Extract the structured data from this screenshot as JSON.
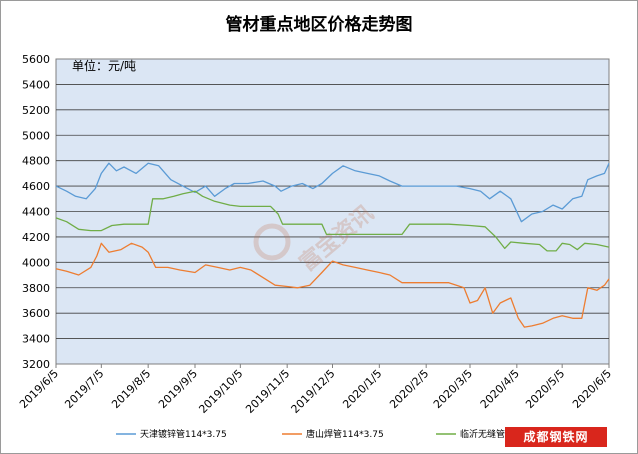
{
  "chart_data": {
    "type": "line",
    "title": "管材重点地区价格走势图",
    "unit_label": "单位：元/吨",
    "ylim": [
      3200,
      5600
    ],
    "yticks": [
      3200,
      3400,
      3600,
      3800,
      4000,
      4200,
      4400,
      4600,
      4800,
      5000,
      5200,
      5400,
      5600
    ],
    "xlim": [
      "2019-06-05",
      "2020-06-05"
    ],
    "xticks": [
      "2019/6/5",
      "2019/7/5",
      "2019/8/5",
      "2019/9/5",
      "2019/10/5",
      "2019/11/5",
      "2019/12/5",
      "2020/1/5",
      "2020/2/5",
      "2020/3/5",
      "2020/4/5",
      "2020/5/5",
      "2020/6/5"
    ],
    "grid": true,
    "legend_position": "bottom",
    "series": [
      {
        "name": "天津镀锌管114*3.75",
        "color": "#5b9bd5",
        "points": [
          [
            "2019-06-05",
            4600
          ],
          [
            "2019-06-12",
            4560
          ],
          [
            "2019-06-18",
            4520
          ],
          [
            "2019-06-25",
            4500
          ],
          [
            "2019-07-01",
            4580
          ],
          [
            "2019-07-05",
            4700
          ],
          [
            "2019-07-10",
            4780
          ],
          [
            "2019-07-15",
            4720
          ],
          [
            "2019-07-20",
            4750
          ],
          [
            "2019-07-28",
            4700
          ],
          [
            "2019-08-05",
            4780
          ],
          [
            "2019-08-12",
            4760
          ],
          [
            "2019-08-20",
            4650
          ],
          [
            "2019-08-28",
            4600
          ],
          [
            "2019-09-05",
            4550
          ],
          [
            "2019-09-12",
            4600
          ],
          [
            "2019-09-18",
            4520
          ],
          [
            "2019-09-25",
            4580
          ],
          [
            "2019-10-01",
            4620
          ],
          [
            "2019-10-10",
            4620
          ],
          [
            "2019-10-20",
            4640
          ],
          [
            "2019-10-28",
            4600
          ],
          [
            "2019-11-01",
            4560
          ],
          [
            "2019-11-08",
            4600
          ],
          [
            "2019-11-15",
            4620
          ],
          [
            "2019-11-22",
            4580
          ],
          [
            "2019-11-28",
            4620
          ],
          [
            "2019-12-05",
            4700
          ],
          [
            "2019-12-12",
            4760
          ],
          [
            "2019-12-20",
            4720
          ],
          [
            "2019-12-28",
            4700
          ],
          [
            "2020-01-05",
            4680
          ],
          [
            "2020-01-12",
            4640
          ],
          [
            "2020-01-20",
            4600
          ],
          [
            "2020-01-28",
            4600
          ],
          [
            "2020-02-05",
            4600
          ],
          [
            "2020-02-15",
            4600
          ],
          [
            "2020-02-25",
            4600
          ],
          [
            "2020-03-05",
            4580
          ],
          [
            "2020-03-12",
            4560
          ],
          [
            "2020-03-18",
            4500
          ],
          [
            "2020-03-25",
            4560
          ],
          [
            "2020-04-01",
            4500
          ],
          [
            "2020-04-08",
            4320
          ],
          [
            "2020-04-15",
            4380
          ],
          [
            "2020-04-22",
            4400
          ],
          [
            "2020-04-29",
            4450
          ],
          [
            "2020-05-05",
            4420
          ],
          [
            "2020-05-12",
            4500
          ],
          [
            "2020-05-18",
            4520
          ],
          [
            "2020-05-22",
            4650
          ],
          [
            "2020-05-28",
            4680
          ],
          [
            "2020-06-02",
            4700
          ],
          [
            "2020-06-05",
            4780
          ]
        ]
      },
      {
        "name": "唐山焊管114*3.75",
        "color": "#ed7d31",
        "points": [
          [
            "2019-06-05",
            3950
          ],
          [
            "2019-06-12",
            3930
          ],
          [
            "2019-06-20",
            3900
          ],
          [
            "2019-06-28",
            3960
          ],
          [
            "2019-07-02",
            4050
          ],
          [
            "2019-07-05",
            4150
          ],
          [
            "2019-07-10",
            4080
          ],
          [
            "2019-07-18",
            4100
          ],
          [
            "2019-07-25",
            4150
          ],
          [
            "2019-08-01",
            4120
          ],
          [
            "2019-08-05",
            4080
          ],
          [
            "2019-08-10",
            3960
          ],
          [
            "2019-08-18",
            3960
          ],
          [
            "2019-08-26",
            3940
          ],
          [
            "2019-09-05",
            3920
          ],
          [
            "2019-09-12",
            3980
          ],
          [
            "2019-09-20",
            3960
          ],
          [
            "2019-09-28",
            3940
          ],
          [
            "2019-10-05",
            3960
          ],
          [
            "2019-10-12",
            3940
          ],
          [
            "2019-10-20",
            3880
          ],
          [
            "2019-10-28",
            3820
          ],
          [
            "2019-11-05",
            3810
          ],
          [
            "2019-11-12",
            3800
          ],
          [
            "2019-11-20",
            3820
          ],
          [
            "2019-11-28",
            3920
          ],
          [
            "2019-12-05",
            4010
          ],
          [
            "2019-12-12",
            3980
          ],
          [
            "2019-12-20",
            3960
          ],
          [
            "2019-12-28",
            3940
          ],
          [
            "2020-01-05",
            3920
          ],
          [
            "2020-01-12",
            3900
          ],
          [
            "2020-01-20",
            3840
          ],
          [
            "2020-02-05",
            3840
          ],
          [
            "2020-02-20",
            3840
          ],
          [
            "2020-03-01",
            3800
          ],
          [
            "2020-03-05",
            3680
          ],
          [
            "2020-03-10",
            3700
          ],
          [
            "2020-03-15",
            3800
          ],
          [
            "2020-03-20",
            3600
          ],
          [
            "2020-03-25",
            3680
          ],
          [
            "2020-04-01",
            3720
          ],
          [
            "2020-04-06",
            3560
          ],
          [
            "2020-04-10",
            3490
          ],
          [
            "2020-04-15",
            3500
          ],
          [
            "2020-04-22",
            3520
          ],
          [
            "2020-04-29",
            3560
          ],
          [
            "2020-05-05",
            3580
          ],
          [
            "2020-05-12",
            3560
          ],
          [
            "2020-05-18",
            3560
          ],
          [
            "2020-05-22",
            3800
          ],
          [
            "2020-05-28",
            3780
          ],
          [
            "2020-06-02",
            3820
          ],
          [
            "2020-06-05",
            3870
          ]
        ]
      },
      {
        "name": "临沂无缝管",
        "color": "#70ad47",
        "points": [
          [
            "2019-06-05",
            4350
          ],
          [
            "2019-06-12",
            4320
          ],
          [
            "2019-06-20",
            4260
          ],
          [
            "2019-06-28",
            4250
          ],
          [
            "2019-07-05",
            4250
          ],
          [
            "2019-07-12",
            4290
          ],
          [
            "2019-07-20",
            4300
          ],
          [
            "2019-07-28",
            4300
          ],
          [
            "2019-08-05",
            4300
          ],
          [
            "2019-08-08",
            4500
          ],
          [
            "2019-08-15",
            4500
          ],
          [
            "2019-08-22",
            4520
          ],
          [
            "2019-08-28",
            4540
          ],
          [
            "2019-09-05",
            4560
          ],
          [
            "2019-09-10",
            4520
          ],
          [
            "2019-09-18",
            4480
          ],
          [
            "2019-09-28",
            4450
          ],
          [
            "2019-10-05",
            4440
          ],
          [
            "2019-10-15",
            4440
          ],
          [
            "2019-10-25",
            4440
          ],
          [
            "2019-10-30",
            4380
          ],
          [
            "2019-11-02",
            4300
          ],
          [
            "2019-11-10",
            4300
          ],
          [
            "2019-11-20",
            4300
          ],
          [
            "2019-11-28",
            4300
          ],
          [
            "2019-12-01",
            4220
          ],
          [
            "2019-12-10",
            4220
          ],
          [
            "2019-12-20",
            4220
          ],
          [
            "2020-01-05",
            4220
          ],
          [
            "2020-01-20",
            4220
          ],
          [
            "2020-01-25",
            4300
          ],
          [
            "2020-02-05",
            4300
          ],
          [
            "2020-02-20",
            4300
          ],
          [
            "2020-03-05",
            4290
          ],
          [
            "2020-03-15",
            4280
          ],
          [
            "2020-03-22",
            4200
          ],
          [
            "2020-03-28",
            4110
          ],
          [
            "2020-04-01",
            4160
          ],
          [
            "2020-04-10",
            4150
          ],
          [
            "2020-04-20",
            4140
          ],
          [
            "2020-04-25",
            4090
          ],
          [
            "2020-05-01",
            4090
          ],
          [
            "2020-05-05",
            4150
          ],
          [
            "2020-05-10",
            4140
          ],
          [
            "2020-05-15",
            4100
          ],
          [
            "2020-05-20",
            4150
          ],
          [
            "2020-05-28",
            4140
          ],
          [
            "2020-06-05",
            4120
          ]
        ]
      }
    ]
  },
  "watermark_text": "富宝资讯",
  "site_badge": "成都钢铁网"
}
